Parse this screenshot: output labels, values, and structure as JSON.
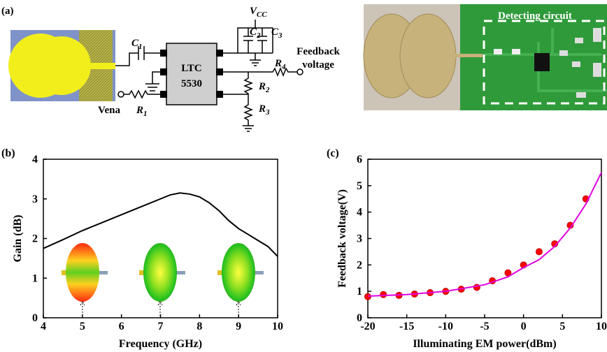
{
  "panel_a": {
    "label": "(a)",
    "circuit": {
      "c1": {
        "main": "C",
        "sub": "1"
      },
      "chip_line1": "LTC",
      "chip_line2": "5530",
      "vcc": {
        "main": "V",
        "sub": "CC"
      },
      "c2": {
        "main": "C",
        "sub": "2"
      },
      "c3": {
        "main": "C",
        "sub": "3"
      },
      "r4": {
        "main": "R",
        "sub": "4"
      },
      "r2": {
        "main": "R",
        "sub": "2"
      },
      "r3": {
        "main": "R",
        "sub": "3"
      },
      "r1": {
        "main": "R",
        "sub": "1"
      },
      "vena": "Vena",
      "output_line1": "Feedback",
      "output_line2": "voltage"
    },
    "photo_label": "Detecting circuit"
  },
  "chart_data": [
    {
      "type": "line",
      "panel_label": "(b)",
      "x_label": "Frequency (GHz)",
      "y_label": "Gain (dB)",
      "x": [
        4,
        4.5,
        5,
        5.5,
        6,
        6.5,
        7,
        7.25,
        7.5,
        7.75,
        8,
        8.25,
        8.5,
        8.75,
        9,
        9.25,
        9.5,
        9.75,
        10
      ],
      "series": [
        {
          "color": "#000000",
          "values": [
            1.75,
            1.97,
            2.2,
            2.4,
            2.6,
            2.8,
            3.0,
            3.1,
            3.15,
            3.12,
            3.05,
            2.9,
            2.7,
            2.45,
            2.25,
            2.1,
            1.95,
            1.8,
            1.55
          ]
        }
      ],
      "xlim": [
        4,
        10
      ],
      "ylim": [
        0,
        4
      ],
      "xticks": [
        4,
        5,
        6,
        7,
        8,
        9,
        10
      ],
      "yticks": [
        0,
        1,
        2,
        3,
        4
      ]
    },
    {
      "type": "scatter",
      "panel_label": "(c)",
      "x_label": "Illuminating EM power(dBm)",
      "y_label": "Feedback voltage(V)",
      "series": [
        {
          "style": "markers",
          "color": "#ff0000",
          "x": [
            -20,
            -18,
            -16,
            -14,
            -12,
            -10,
            -8,
            -6,
            -4,
            -2,
            0,
            2,
            4,
            6,
            8
          ],
          "values": [
            0.8,
            0.88,
            0.85,
            0.9,
            0.95,
            1.0,
            1.08,
            1.15,
            1.4,
            1.7,
            2.0,
            2.5,
            2.8,
            3.5,
            4.5
          ]
        },
        {
          "style": "line",
          "color": "#e000e0",
          "x": [
            -20,
            -15,
            -10,
            -5,
            -2,
            0,
            2,
            4,
            6,
            8,
            10
          ],
          "values": [
            0.82,
            0.88,
            1.0,
            1.25,
            1.55,
            1.9,
            2.2,
            2.7,
            3.4,
            4.3,
            5.5
          ]
        }
      ],
      "xlim": [
        -20,
        10
      ],
      "ylim": [
        0,
        6
      ],
      "xticks": [
        -20,
        -15,
        -10,
        -5,
        0,
        5,
        10
      ],
      "yticks": [
        0,
        1,
        2,
        3,
        4,
        5,
        6
      ]
    }
  ]
}
